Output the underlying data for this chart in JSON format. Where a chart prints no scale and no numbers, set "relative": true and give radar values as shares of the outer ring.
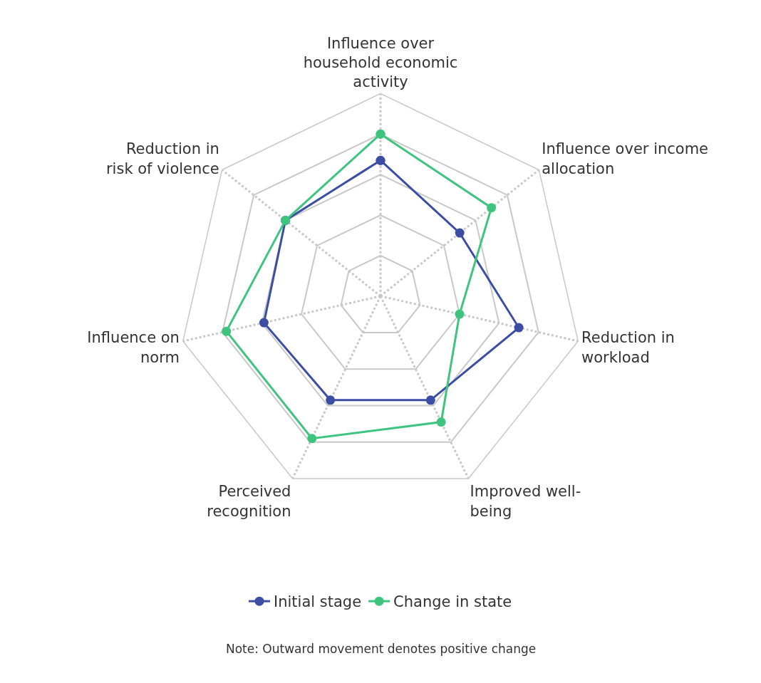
{
  "chart_data": {
    "type": "radar",
    "relative": true,
    "categories": [
      "Influence over household economic activity",
      "Influence over income allocation",
      "Reduction in workload",
      "Improved well-being",
      "Perceived recognition",
      "Influence on norm",
      "Reduction in risk of violence"
    ],
    "series": [
      {
        "name": "Initial stage",
        "color": "#3b4ea3",
        "values": [
          0.67,
          0.5,
          0.7,
          0.57,
          0.57,
          0.59,
          0.6
        ]
      },
      {
        "name": "Change in state",
        "color": "#3ec47f",
        "values": [
          0.8,
          0.7,
          0.4,
          0.69,
          0.78,
          0.78,
          0.6
        ]
      }
    ],
    "marker": "circle",
    "line_style": "solid",
    "grid": true,
    "legend": "bottom",
    "annotations": [
      "Note: Outward movement denotes positive change"
    ]
  }
}
